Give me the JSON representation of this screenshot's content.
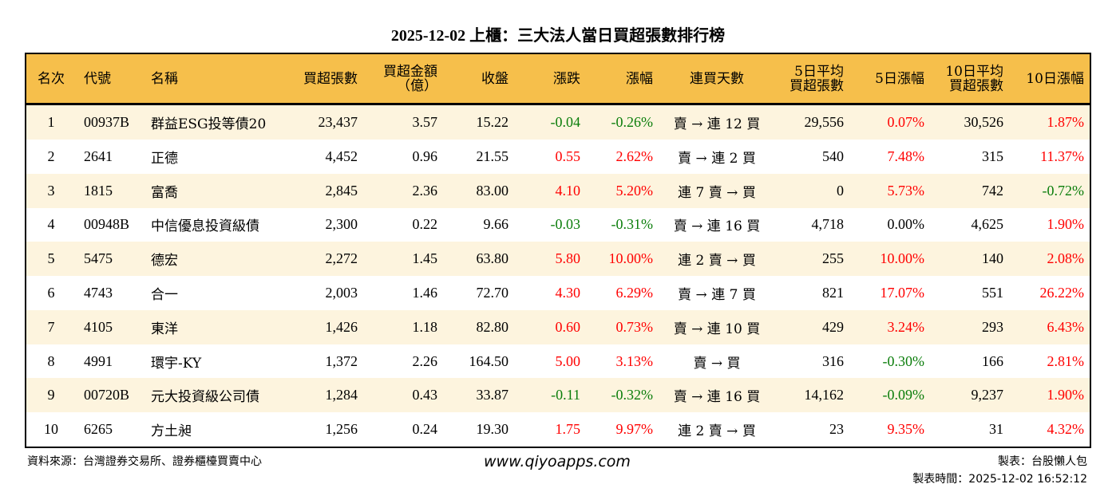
{
  "title": "2025-12-02 上櫃：三大法人當日買超張數排行榜",
  "headers": [
    [
      "名次"
    ],
    [
      "代號"
    ],
    [
      "名稱"
    ],
    [
      "買超張數"
    ],
    [
      "買超金額",
      "（億）"
    ],
    [
      "收盤"
    ],
    [
      "漲跌"
    ],
    [
      "漲幅"
    ],
    [
      "連買天數"
    ],
    [
      "5日平均",
      "買超張數"
    ],
    [
      "5日漲幅"
    ],
    [
      "10日平均",
      "買超張數"
    ],
    [
      "10日漲幅"
    ]
  ],
  "rows": [
    [
      "1",
      "00937B",
      "群益ESG投等債20",
      "23,437",
      "3.57",
      "15.22",
      "-0.04",
      "-0.26%",
      "賣 → 連 12 買",
      "29,556",
      "0.07%",
      "30,526",
      "1.87%"
    ],
    [
      "2",
      "2641",
      "正德",
      "4,452",
      "0.96",
      "21.55",
      "0.55",
      "2.62%",
      "賣 → 連 2 買",
      "540",
      "7.48%",
      "315",
      "11.37%"
    ],
    [
      "3",
      "1815",
      "富喬",
      "2,845",
      "2.36",
      "83.00",
      "4.10",
      "5.20%",
      "連 7 賣 → 買",
      "0",
      "5.73%",
      "742",
      "-0.72%"
    ],
    [
      "4",
      "00948B",
      "中信優息投資級債",
      "2,300",
      "0.22",
      "9.66",
      "-0.03",
      "-0.31%",
      "賣 → 連 16 買",
      "4,718",
      "0.00%",
      "4,625",
      "1.90%"
    ],
    [
      "5",
      "5475",
      "德宏",
      "2,272",
      "1.45",
      "63.80",
      "5.80",
      "10.00%",
      "連 2 賣 → 買",
      "255",
      "10.00%",
      "140",
      "2.08%"
    ],
    [
      "6",
      "4743",
      "合一",
      "2,003",
      "1.46",
      "72.70",
      "4.30",
      "6.29%",
      "賣 → 連 7 買",
      "821",
      "17.07%",
      "551",
      "26.22%"
    ],
    [
      "7",
      "4105",
      "東洋",
      "1,426",
      "1.18",
      "82.80",
      "0.60",
      "0.73%",
      "賣 → 連 10 買",
      "429",
      "3.24%",
      "293",
      "6.43%"
    ],
    [
      "8",
      "4991",
      "環宇-KY",
      "1,372",
      "2.26",
      "164.50",
      "5.00",
      "3.13%",
      "賣 → 買",
      "316",
      "-0.30%",
      "166",
      "2.81%"
    ],
    [
      "9",
      "00720B",
      "元大投資級公司債",
      "1,284",
      "0.43",
      "33.87",
      "-0.11",
      "-0.32%",
      "賣 → 連 16 買",
      "14,162",
      "-0.09%",
      "9,237",
      "1.90%"
    ],
    [
      "10",
      "6265",
      "方土昶",
      "1,256",
      "0.24",
      "19.30",
      "1.75",
      "9.97%",
      "連 2 賣 → 買",
      "23",
      "9.35%",
      "31",
      "4.32%"
    ]
  ],
  "footer": {
    "source": "資料來源：台灣證券交易所、證券櫃檯買賣中心",
    "url": "www.qiyoapps.com",
    "maker": "製表：台股懶人包",
    "time": "製表時間：2025-12-02 16:52:12"
  },
  "colors": {
    "header_bg": "#f6bf4b",
    "odd_row_bg": "#fdf4de",
    "up": "#ff0000",
    "down": "#0a7d0a"
  }
}
